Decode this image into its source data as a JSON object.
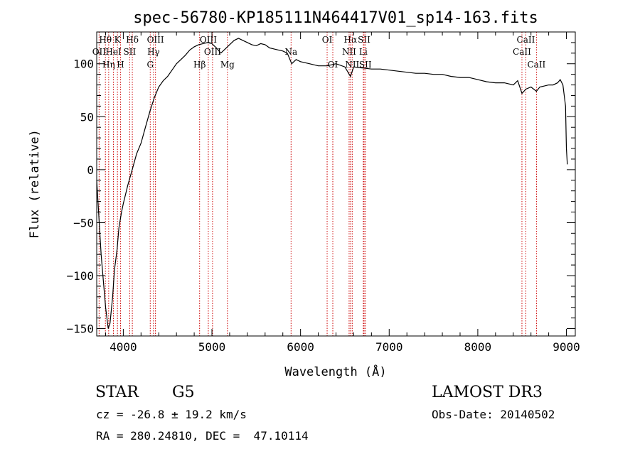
{
  "chart_data": {
    "type": "line",
    "title": "spec-56780-KP185111N464417V01_sp14-163.fits",
    "xlabel": "Wavelength (Å)",
    "ylabel": "Flux (relative)",
    "xlim": [
      3700,
      9100
    ],
    "ylim": [
      -157,
      130
    ],
    "x_ticks": [
      4000,
      5000,
      6000,
      7000,
      8000,
      9000
    ],
    "y_ticks": [
      -150,
      -100,
      -50,
      0,
      50,
      100
    ],
    "grid": false,
    "series": [
      {
        "x": [
          3700,
          3750,
          3800,
          3830,
          3850,
          3880,
          3900,
          3930,
          3950,
          3980,
          4000,
          4050,
          4100,
          4150,
          4200,
          4250,
          4300,
          4350,
          4400,
          4450,
          4500,
          4550,
          4600,
          4650,
          4700,
          4750,
          4800,
          4850,
          4900,
          4950,
          5000,
          5050,
          5100,
          5150,
          5200,
          5250,
          5300,
          5350,
          5400,
          5450,
          5500,
          5550,
          5600,
          5650,
          5700,
          5750,
          5800,
          5850,
          5900,
          5950,
          6000,
          6100,
          6200,
          6300,
          6400,
          6500,
          6563,
          6600,
          6700,
          6800,
          6900,
          7000,
          7100,
          7200,
          7300,
          7400,
          7500,
          7600,
          7700,
          7800,
          7900,
          8000,
          8100,
          8200,
          8300,
          8400,
          8450,
          8498,
          8542,
          8600,
          8662,
          8700,
          8750,
          8800,
          8850,
          8900,
          8930,
          8960,
          8990,
          9000,
          9010
        ],
        "y": [
          -10,
          -80,
          -130,
          -150,
          -145,
          -120,
          -95,
          -75,
          -55,
          -40,
          -32,
          -15,
          0,
          15,
          25,
          40,
          55,
          68,
          78,
          84,
          88,
          94,
          100,
          104,
          108,
          113,
          116,
          118,
          119,
          120,
          119,
          115,
          110,
          114,
          118,
          122,
          124,
          122,
          120,
          118,
          117,
          119,
          118,
          115,
          114,
          113,
          112,
          110,
          100,
          104,
          102,
          100,
          98,
          98,
          100,
          97,
          88,
          97,
          96,
          95,
          95,
          94,
          93,
          92,
          91,
          91,
          90,
          90,
          88,
          87,
          87,
          85,
          83,
          82,
          82,
          80,
          84,
          72,
          76,
          78,
          74,
          78,
          79,
          80,
          80,
          82,
          85,
          80,
          60,
          20,
          5
        ]
      }
    ],
    "spectral_lines": [
      {
        "name": "Hθ",
        "wavelength": 3798,
        "row": 0
      },
      {
        "name": "OII",
        "wavelength": 3727,
        "row": 1
      },
      {
        "name": "Hη",
        "wavelength": 3835,
        "row": 2
      },
      {
        "name": "K",
        "wavelength": 3934,
        "row": 0
      },
      {
        "name": "HeI",
        "wavelength": 3889,
        "row": 1
      },
      {
        "name": "H",
        "wavelength": 3969,
        "row": 2
      },
      {
        "name": "SII",
        "wavelength": 4072,
        "row": 1
      },
      {
        "name": "Hδ",
        "wavelength": 4102,
        "row": 0
      },
      {
        "name": "OIII",
        "wavelength": 4363,
        "row": 0
      },
      {
        "name": "Hγ",
        "wavelength": 4341,
        "row": 1
      },
      {
        "name": "G",
        "wavelength": 4304,
        "row": 2
      },
      {
        "name": "Hβ",
        "wavelength": 4861,
        "row": 2
      },
      {
        "name": "OIII",
        "wavelength": 4959,
        "row": 0
      },
      {
        "name": "OIII",
        "wavelength": 5007,
        "row": 1
      },
      {
        "name": "Mg",
        "wavelength": 5175,
        "row": 2
      },
      {
        "name": "Na",
        "wavelength": 5893,
        "row": 1
      },
      {
        "name": "OI",
        "wavelength": 6300,
        "row": 0
      },
      {
        "name": "OI",
        "wavelength": 6364,
        "row": 2
      },
      {
        "name": "Hα",
        "wavelength": 6563,
        "row": 0
      },
      {
        "name": "NII",
        "wavelength": 6548,
        "row": 1
      },
      {
        "name": "NII",
        "wavelength": 6583,
        "row": 2
      },
      {
        "name": "SII",
        "wavelength": 6717,
        "row": 0
      },
      {
        "name": "Li",
        "wavelength": 6708,
        "row": 1
      },
      {
        "name": "SII",
        "wavelength": 6731,
        "row": 2
      },
      {
        "name": "CaII",
        "wavelength": 8542,
        "row": 0
      },
      {
        "name": "CaII",
        "wavelength": 8498,
        "row": 1
      },
      {
        "name": "CaII",
        "wavelength": 8662,
        "row": 2
      }
    ]
  },
  "info": {
    "class": "STAR",
    "subclass": "G5",
    "survey": "LAMOST DR3",
    "cz": "cz = -26.8 ± 19.2 km/s",
    "obs_date": "Obs-Date: 20140502",
    "radec": "RA = 280.24810, DEC =  47.10114"
  }
}
